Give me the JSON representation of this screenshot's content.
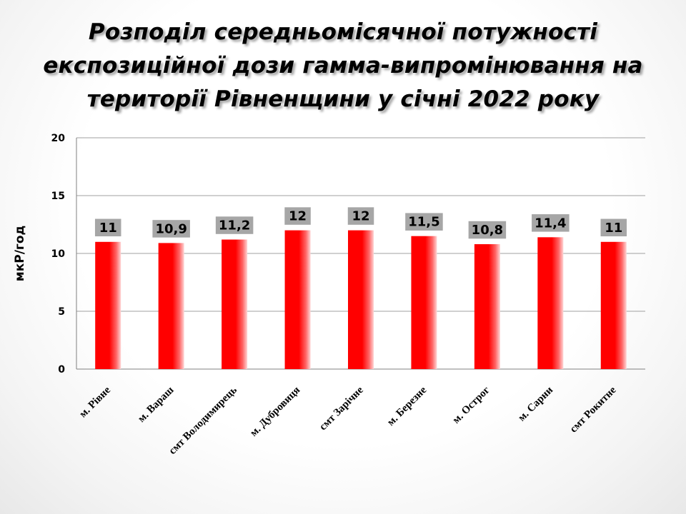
{
  "title": "Розподіл середньомісячної потужності експозиційної дози гамма-випромінювання на території Рівненщини у січні 2022 року",
  "chart_data": {
    "type": "bar",
    "title": "Розподіл середньомісячної потужності експозиційної дози гамма-випромінювання на території Рівненщини у січні 2022 року",
    "categories": [
      "м. Рівне",
      "м. Вараш",
      "смт Володимирець",
      "м. Дубровиця",
      "смт Зарічне",
      "м. Березне",
      "м. Острог",
      "м. Сарни",
      "смт Рокитне"
    ],
    "values": [
      11,
      10.9,
      11.2,
      12,
      12,
      11.5,
      10.8,
      11.4,
      11
    ],
    "value_labels": [
      "11",
      "10,9",
      "11,2",
      "12",
      "12",
      "11,5",
      "10,8",
      "11,4",
      "11"
    ],
    "xlabel": "",
    "ylabel": "мкР/год",
    "ylim": [
      0,
      20
    ],
    "yticks": [
      "0",
      "5",
      "10",
      "15",
      "20"
    ],
    "ytick_values": [
      0,
      5,
      10,
      15,
      20
    ],
    "grid": true,
    "legend": "none",
    "colors": {
      "bar": "#ff0000",
      "bar_highlight": "#ffffff",
      "label_bg": "#a6a6a6",
      "grid": "#a0a0a0"
    }
  }
}
